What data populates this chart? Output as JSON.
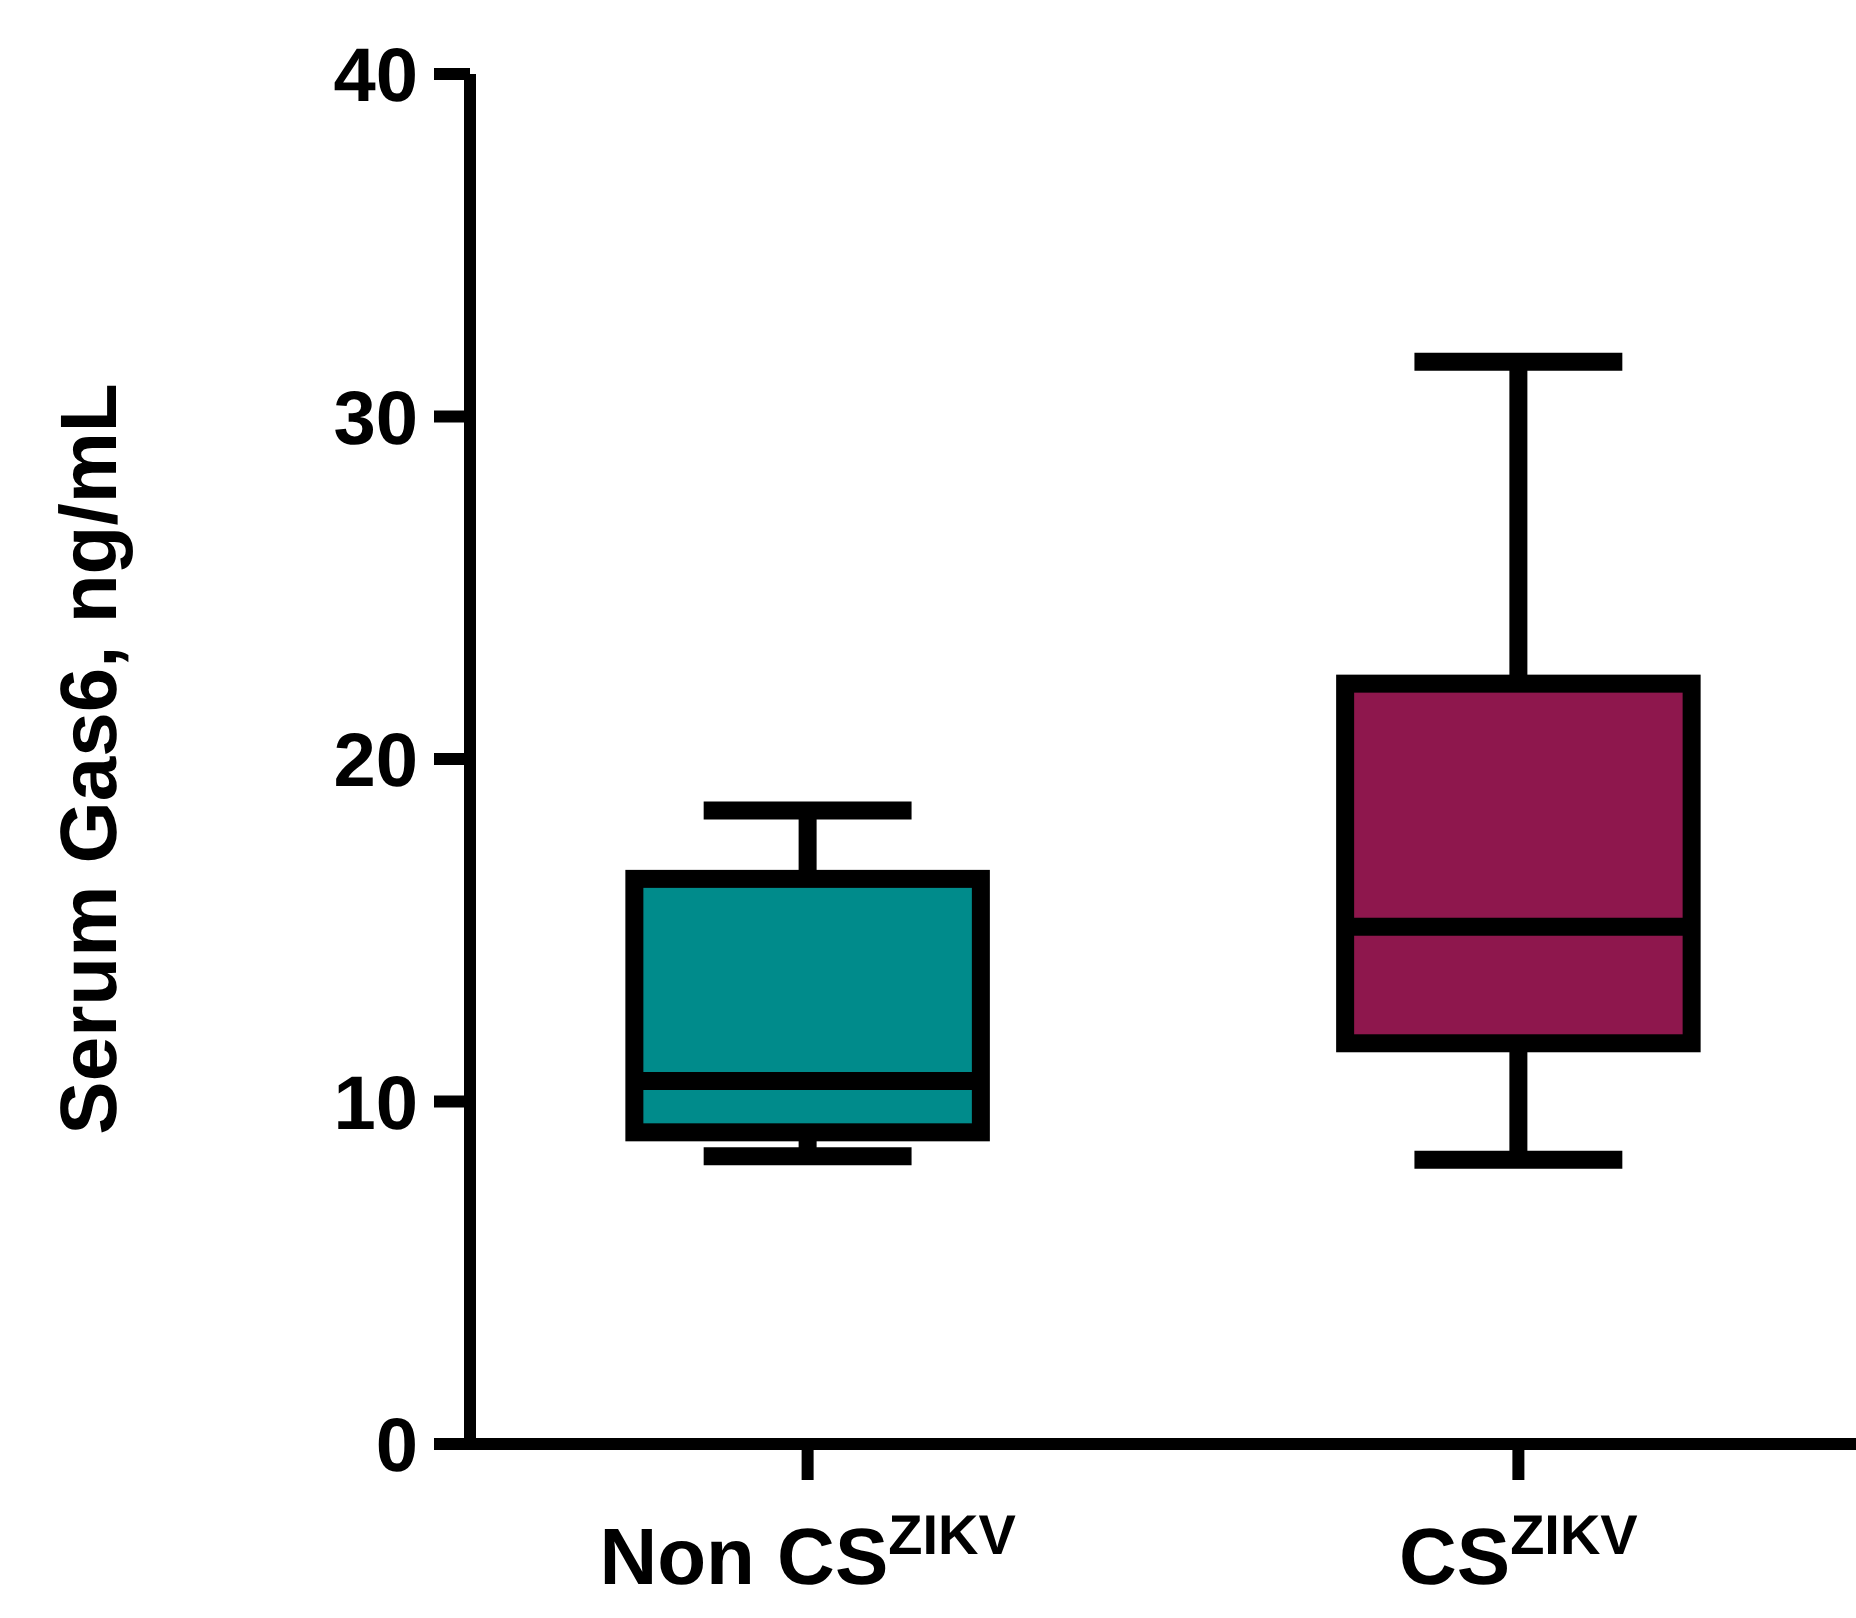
{
  "chart_data": {
    "type": "box",
    "ylabel": "Serum Gas6, ng/mL",
    "categories": [
      "Non CS$^{ZIKV}$",
      "CS$^{ZIKV}$"
    ],
    "series": [
      {
        "colors": [
          "#008b8b",
          "#8e174d"
        ],
        "boxes": [
          {
            "low": 8.4,
            "q1": 9.1,
            "median": 10.6,
            "q3": 16.5,
            "high": 18.5
          },
          {
            "low": 8.3,
            "q1": 11.7,
            "median": 15.1,
            "q3": 22.2,
            "high": 31.6
          }
        ]
      }
    ],
    "ylim": [
      0,
      40
    ],
    "yticks": [
      0,
      10,
      20,
      30,
      40
    ],
    "grid": false
  }
}
